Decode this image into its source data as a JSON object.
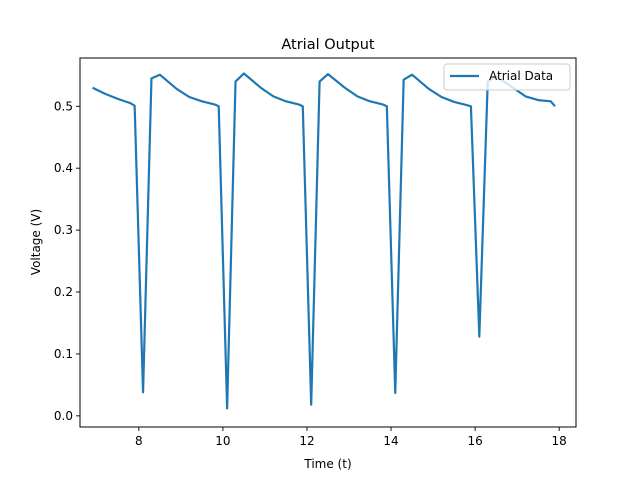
{
  "chart_data": {
    "type": "line",
    "title": "Atrial Output",
    "xlabel": "Time (t)",
    "ylabel": "Voltage (V)",
    "xlim": [
      6.6,
      18.4
    ],
    "ylim": [
      -0.018,
      0.578
    ],
    "xticks": [
      8,
      10,
      12,
      14,
      16,
      18
    ],
    "yticks": [
      0.0,
      0.1,
      0.2,
      0.3,
      0.4,
      0.5
    ],
    "xtick_labels": [
      "8",
      "10",
      "12",
      "14",
      "16",
      "18"
    ],
    "ytick_labels": [
      "0.0",
      "0.1",
      "0.2",
      "0.3",
      "0.4",
      "0.5"
    ],
    "grid": false,
    "legend_position": "top-right",
    "series": [
      {
        "name": "Atrial Data",
        "color": "#1f77b4",
        "x": [
          6.9,
          7.2,
          7.5,
          7.8,
          7.9,
          8.1,
          8.3,
          8.5,
          8.9,
          9.2,
          9.5,
          9.8,
          9.9,
          10.1,
          10.3,
          10.5,
          10.9,
          11.2,
          11.5,
          11.8,
          11.9,
          12.1,
          12.3,
          12.5,
          12.9,
          13.2,
          13.5,
          13.8,
          13.9,
          14.1,
          14.3,
          14.5,
          14.9,
          15.2,
          15.5,
          15.8,
          15.9,
          16.1,
          16.3,
          16.5,
          16.9,
          17.2,
          17.5,
          17.8,
          17.9
        ],
        "y": [
          0.53,
          0.52,
          0.512,
          0.505,
          0.501,
          0.038,
          0.545,
          0.551,
          0.528,
          0.515,
          0.508,
          0.503,
          0.5,
          0.012,
          0.54,
          0.553,
          0.53,
          0.516,
          0.508,
          0.503,
          0.5,
          0.018,
          0.54,
          0.552,
          0.53,
          0.516,
          0.508,
          0.503,
          0.5,
          0.037,
          0.543,
          0.551,
          0.528,
          0.515,
          0.507,
          0.502,
          0.5,
          0.128,
          0.54,
          0.548,
          0.53,
          0.516,
          0.51,
          0.508,
          0.5
        ]
      }
    ]
  }
}
